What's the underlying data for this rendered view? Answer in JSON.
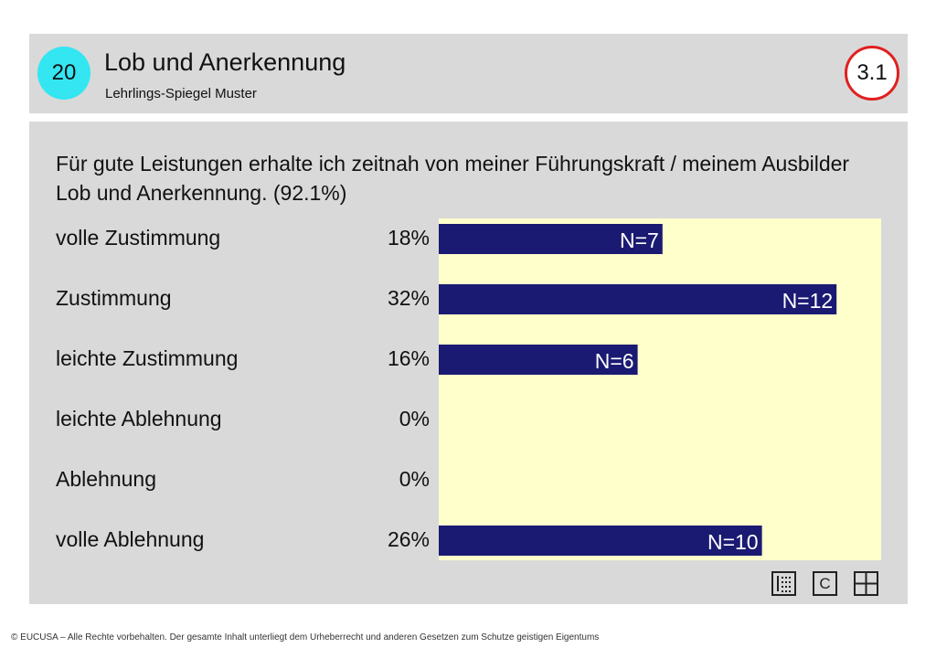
{
  "header": {
    "number_badge": "20",
    "title": "Lob und Anerkennung",
    "subtitle": "Lehrlings-Spiegel Muster",
    "section_badge": "3.1",
    "colors": {
      "number_badge": "#33e6f2",
      "section_badge_ring": "#e02020",
      "background": "#d9d9d9"
    }
  },
  "question": "Für gute Leistungen erhalte ich zeitnah von meiner Führungskraft / meinem Ausbilder Lob und Anerkennung. (92.1%)",
  "rows": [
    {
      "label": "volle Zustimmung",
      "percent": "18%"
    },
    {
      "label": "Zustimmung",
      "percent": "32%"
    },
    {
      "label": "leichte Zustimmung",
      "percent": "16%"
    },
    {
      "label": "leichte Ablehnung",
      "percent": "0%"
    },
    {
      "label": "Ablehnung",
      "percent": "0%"
    },
    {
      "label": "volle Ablehnung",
      "percent": "26%"
    }
  ],
  "chart_data": {
    "type": "bar",
    "orientation": "horizontal",
    "categories": [
      "volle Zustimmung",
      "Zustimmung",
      "leichte Zustimmung",
      "leichte Ablehnung",
      "Ablehnung",
      "volle Ablehnung"
    ],
    "values": [
      18,
      32,
      16,
      0,
      0,
      26
    ],
    "counts": [
      7,
      12,
      6,
      0,
      0,
      10
    ],
    "data_labels": [
      "N=7",
      "N=12",
      "N=6",
      "",
      "",
      "N=10"
    ],
    "xlim": [
      0,
      35
    ],
    "grid": false,
    "colors": {
      "bar": "#1a1a73",
      "plot_background": "#ffffcc",
      "label_on_bar": "#ffffff",
      "label_outside": "#1a1a73"
    }
  },
  "icons": [
    "list-icon",
    "c-icon",
    "grid-icon"
  ],
  "icon_labels": {
    "c": "C"
  },
  "footer": "© EUCUSA – Alle Rechte vorbehalten. Der gesamte Inhalt unterliegt dem Urheberrecht und anderen Gesetzen zum Schutze geistigen Eigentums"
}
